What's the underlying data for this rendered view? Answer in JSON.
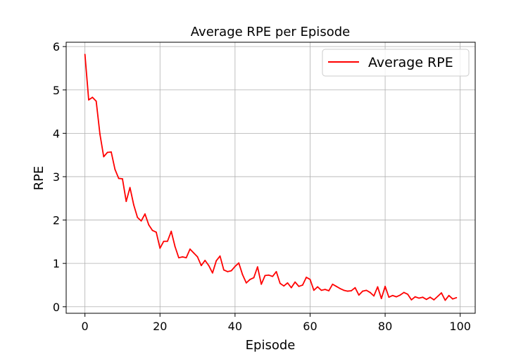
{
  "chart_data": {
    "type": "line",
    "title": "Average RPE per Episode",
    "xlabel": "Episode",
    "ylabel": "RPE",
    "xlim": [
      -5,
      104
    ],
    "ylim": [
      -0.15,
      6.1
    ],
    "xticks": [
      0,
      20,
      40,
      60,
      80,
      100
    ],
    "yticks": [
      0,
      1,
      2,
      3,
      4,
      5,
      6
    ],
    "grid": true,
    "legend_position": "top-right",
    "series": [
      {
        "name": "Average RPE",
        "color": "#ff0000",
        "x": [
          0,
          1,
          2,
          3,
          4,
          5,
          6,
          7,
          8,
          9,
          10,
          11,
          12,
          13,
          14,
          15,
          16,
          17,
          18,
          19,
          20,
          21,
          22,
          23,
          24,
          25,
          26,
          27,
          28,
          29,
          30,
          31,
          32,
          33,
          34,
          35,
          36,
          37,
          38,
          39,
          40,
          41,
          42,
          43,
          44,
          45,
          46,
          47,
          48,
          49,
          50,
          51,
          52,
          53,
          54,
          55,
          56,
          57,
          58,
          59,
          60,
          61,
          62,
          63,
          64,
          65,
          66,
          67,
          68,
          69,
          70,
          71,
          72,
          73,
          74,
          75,
          76,
          77,
          78,
          79,
          80,
          81,
          82,
          83,
          84,
          85,
          86,
          87,
          88,
          89,
          90,
          91,
          92,
          93,
          94,
          95,
          96,
          97,
          98,
          99
        ],
        "values": [
          5.82,
          4.77,
          4.83,
          4.74,
          3.98,
          3.46,
          3.56,
          3.57,
          3.17,
          2.96,
          2.95,
          2.43,
          2.75,
          2.35,
          2.06,
          1.98,
          2.14,
          1.89,
          1.76,
          1.72,
          1.35,
          1.51,
          1.51,
          1.74,
          1.39,
          1.13,
          1.15,
          1.13,
          1.33,
          1.24,
          1.15,
          0.95,
          1.07,
          0.95,
          0.78,
          1.06,
          1.17,
          0.85,
          0.81,
          0.83,
          0.93,
          1.01,
          0.74,
          0.55,
          0.63,
          0.67,
          0.92,
          0.52,
          0.72,
          0.73,
          0.7,
          0.81,
          0.54,
          0.48,
          0.55,
          0.44,
          0.57,
          0.47,
          0.5,
          0.68,
          0.63,
          0.38,
          0.46,
          0.38,
          0.4,
          0.37,
          0.52,
          0.47,
          0.42,
          0.38,
          0.36,
          0.37,
          0.44,
          0.27,
          0.36,
          0.38,
          0.33,
          0.25,
          0.46,
          0.19,
          0.47,
          0.22,
          0.26,
          0.23,
          0.27,
          0.33,
          0.29,
          0.16,
          0.23,
          0.2,
          0.22,
          0.17,
          0.22,
          0.16,
          0.24,
          0.32,
          0.15,
          0.26,
          0.18,
          0.21
        ]
      }
    ]
  }
}
